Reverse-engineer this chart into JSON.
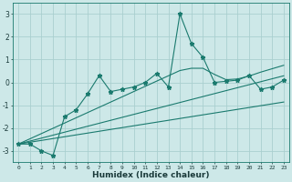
{
  "xlabel": "Humidex (Indice chaleur)",
  "background_color": "#cde8e8",
  "grid_color": "#aacfcf",
  "line_color": "#1a7a6e",
  "x_data": [
    0,
    1,
    2,
    3,
    4,
    5,
    6,
    7,
    8,
    9,
    10,
    11,
    12,
    13,
    14,
    15,
    16,
    17,
    18,
    19,
    20,
    21,
    22,
    23
  ],
  "y_main": [
    -2.7,
    -2.7,
    -3.0,
    -3.2,
    -1.5,
    -1.2,
    -0.5,
    0.3,
    -0.4,
    -0.3,
    -0.2,
    0.0,
    0.4,
    -0.2,
    3.0,
    1.7,
    1.1,
    0.0,
    0.05,
    0.1,
    0.3,
    -0.3,
    -0.2,
    0.1
  ],
  "y_line1": [
    -2.7,
    -2.47,
    -2.24,
    -2.01,
    -1.78,
    -1.55,
    -1.32,
    -1.09,
    -0.86,
    -0.63,
    -0.4,
    -0.17,
    0.06,
    0.29,
    0.52,
    0.62,
    0.62,
    0.35,
    0.12,
    0.15,
    0.28,
    0.45,
    0.6,
    0.75
  ],
  "y_line2": [
    -2.7,
    -2.57,
    -2.44,
    -2.31,
    -2.18,
    -2.05,
    -1.92,
    -1.79,
    -1.66,
    -1.53,
    -1.4,
    -1.27,
    -1.14,
    -1.01,
    -0.88,
    -0.75,
    -0.62,
    -0.49,
    -0.36,
    -0.23,
    -0.1,
    0.03,
    0.16,
    0.29
  ],
  "y_line3": [
    -2.7,
    -2.62,
    -2.54,
    -2.46,
    -2.38,
    -2.3,
    -2.22,
    -2.14,
    -2.06,
    -1.98,
    -1.9,
    -1.82,
    -1.74,
    -1.66,
    -1.58,
    -1.5,
    -1.42,
    -1.34,
    -1.26,
    -1.18,
    -1.1,
    -1.02,
    -0.94,
    -0.86
  ],
  "ylim": [
    -3.5,
    3.5
  ],
  "yticks": [
    -3,
    -2,
    -1,
    0,
    1,
    2,
    3
  ],
  "xlim": [
    -0.5,
    23.5
  ]
}
